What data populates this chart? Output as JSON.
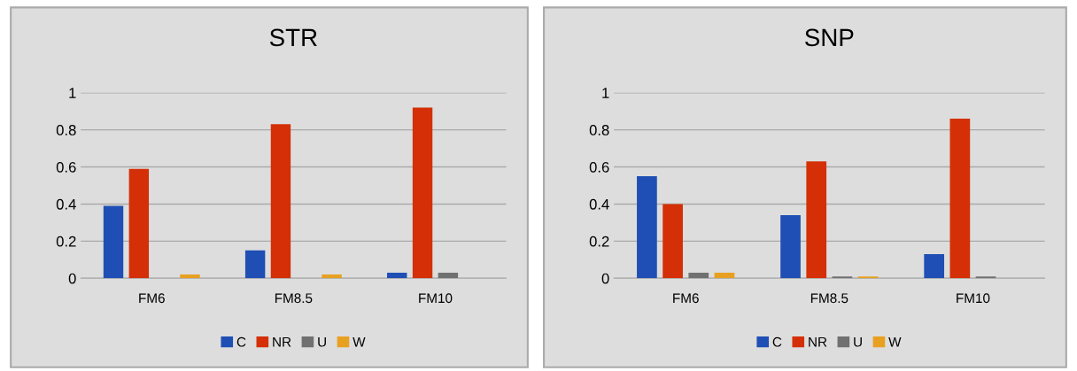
{
  "chart_data": [
    {
      "type": "bar",
      "title": "STR",
      "categories": [
        "FM6",
        "FM8.5",
        "FM10"
      ],
      "ylim": [
        0,
        1
      ],
      "yticks": [
        0,
        {
          "value": 0.2,
          "label": "0.2"
        },
        {
          "value": 0.4,
          "label": "0.4"
        },
        {
          "value": 0.6,
          "label": "0.6"
        },
        {
          "value": 0.8,
          "label": "0.8"
        },
        1
      ],
      "grid": "y",
      "legend": "bottom",
      "series": [
        {
          "name": "C",
          "color": "#1f4fb4",
          "values": [
            0.39,
            0.15,
            0.03
          ]
        },
        {
          "name": "NR",
          "color": "#d42f06",
          "values": [
            0.59,
            0.83,
            0.92
          ]
        },
        {
          "name": "U",
          "color": "#707070",
          "values": [
            0,
            0,
            0.03
          ]
        },
        {
          "name": "W",
          "color": "#e8a020",
          "values": [
            0.02,
            0.02,
            0
          ]
        }
      ]
    },
    {
      "type": "bar",
      "title": "SNP",
      "categories": [
        "FM6",
        "FM8.5",
        "FM10"
      ],
      "ylim": [
        0,
        1
      ],
      "yticks": [
        0,
        {
          "value": 0.2,
          "label": "0.2"
        },
        {
          "value": 0.4,
          "label": "0.4"
        },
        {
          "value": 0.6,
          "label": "0.6"
        },
        {
          "value": 0.8,
          "label": "0.8"
        },
        1
      ],
      "grid": "y",
      "legend": "bottom",
      "series": [
        {
          "name": "C",
          "color": "#1f4fb4",
          "values": [
            0.55,
            0.34,
            0.13
          ]
        },
        {
          "name": "NR",
          "color": "#d42f06",
          "values": [
            0.4,
            0.63,
            0.86
          ]
        },
        {
          "name": "U",
          "color": "#707070",
          "values": [
            0.03,
            0.01,
            0.01
          ]
        },
        {
          "name": "W",
          "color": "#e8a020",
          "values": [
            0.03,
            0.01,
            0
          ]
        }
      ]
    }
  ]
}
